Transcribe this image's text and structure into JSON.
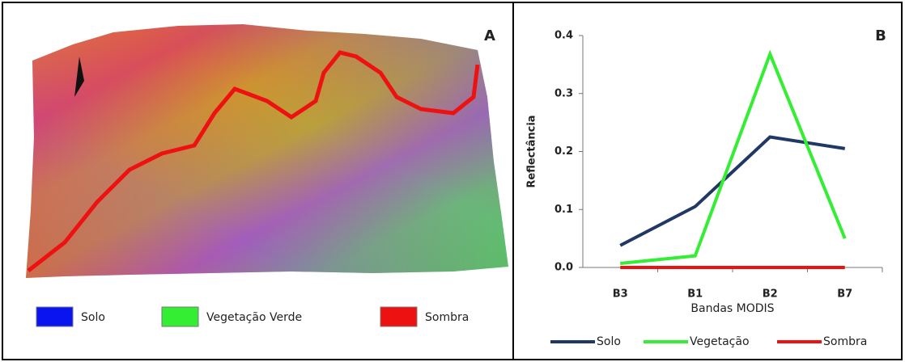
{
  "panel_a": {
    "label": "A",
    "legend": [
      {
        "name": "Solo",
        "color": "#0a14f0"
      },
      {
        "name": "Vegetação Verde",
        "color": "#33ee33"
      },
      {
        "name": "Sombra",
        "color": "#ee1111"
      }
    ]
  },
  "chart_data": {
    "type": "line",
    "label": "B",
    "y_label": "Reflectância",
    "x_label": "Bandas MODIS",
    "categories": [
      "B3",
      "B1",
      "B2",
      "B7"
    ],
    "series": [
      {
        "name": "Solo",
        "color": "#1f3864",
        "values": [
          0.038,
          0.105,
          0.225,
          0.205
        ]
      },
      {
        "name": "Vegetação",
        "color": "#33ee33",
        "values": [
          0.007,
          0.02,
          0.368,
          0.05
        ]
      },
      {
        "name": "Sombra",
        "color": "#ee1111",
        "values": [
          0,
          0,
          0,
          0
        ]
      }
    ],
    "ylim": [
      0,
      0.4
    ],
    "yticks": [
      {
        "value": 0,
        "label": "0.0"
      },
      0.1,
      0.2,
      0.3,
      0.4
    ]
  }
}
